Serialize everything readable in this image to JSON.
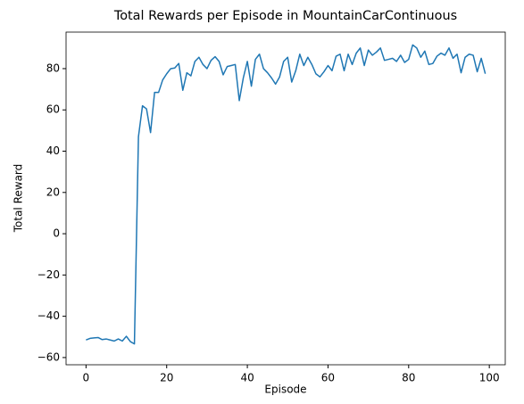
{
  "chart_data": {
    "type": "line",
    "title": "Total Rewards per Episode in MountainCarContinuous",
    "x_label": "Episode",
    "y_label": "Total Reward",
    "x": [
      0,
      1,
      2,
      3,
      4,
      5,
      6,
      7,
      8,
      9,
      10,
      11,
      12,
      13,
      14,
      15,
      16,
      17,
      18,
      19,
      20,
      21,
      22,
      23,
      24,
      25,
      26,
      27,
      28,
      29,
      30,
      31,
      32,
      33,
      34,
      35,
      36,
      37,
      38,
      39,
      40,
      41,
      42,
      43,
      44,
      45,
      46,
      47,
      48,
      49,
      50,
      51,
      52,
      53,
      54,
      55,
      56,
      57,
      58,
      59,
      60,
      61,
      62,
      63,
      64,
      65,
      66,
      67,
      68,
      69,
      70,
      71,
      72,
      73,
      74,
      75,
      76,
      77,
      78,
      79,
      80,
      81,
      82,
      83,
      84,
      85,
      86,
      87,
      88,
      89,
      90,
      91,
      92,
      93,
      94,
      95,
      96,
      97,
      98,
      99
    ],
    "series": [
      {
        "name": "Total Reward",
        "color": "#1f77b4",
        "values": [
          -51.5,
          -50.7,
          -50.5,
          -50.3,
          -51.3,
          -51,
          -51.5,
          -52,
          -51,
          -52,
          -49.7,
          -52.3,
          -53.4,
          47,
          62,
          60.5,
          49,
          68.5,
          68.5,
          74.5,
          77.5,
          80,
          80.3,
          82.5,
          69.5,
          78,
          76.5,
          83.5,
          85.5,
          82,
          80,
          84,
          85.8,
          83.5,
          77,
          81,
          81.5,
          82,
          64.5,
          75.5,
          83.5,
          71.5,
          84.5,
          87,
          80,
          78,
          75.5,
          72.5,
          76,
          83.5,
          85.5,
          73.5,
          79,
          87,
          81.5,
          85.5,
          82,
          77.5,
          76,
          78.5,
          81.5,
          79,
          86,
          87,
          79,
          87,
          82,
          87.5,
          90,
          81.5,
          89,
          86.5,
          88,
          90,
          84,
          84.5,
          85,
          83.5,
          86.5,
          83,
          84.5,
          91.5,
          90,
          85.5,
          88.5,
          82,
          82.5,
          86,
          87.5,
          86.5,
          90,
          85,
          87,
          78,
          85.5,
          87,
          86.5,
          78.5,
          85,
          77.5
        ]
      }
    ],
    "xlim": [
      -4.95,
      103.95
    ],
    "xticks": [
      0,
      20,
      40,
      60,
      80,
      100
    ],
    "ylim": [
      -63.5,
      97.7
    ],
    "yticks": [
      {
        "value": -60,
        "label": "−60"
      },
      {
        "value": -40,
        "label": "−40"
      },
      {
        "value": -20,
        "label": "−20"
      },
      0,
      20,
      40,
      60,
      80
    ]
  }
}
